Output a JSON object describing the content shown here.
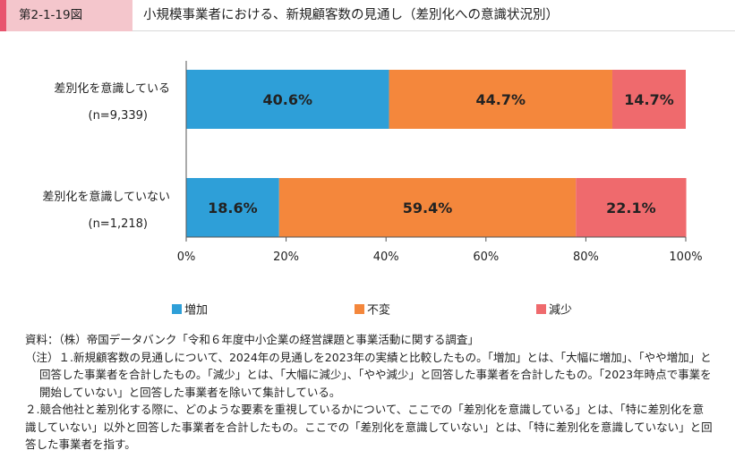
{
  "header": {
    "figure_number": "第2-1-19図",
    "title": "小規模事業者における、新規顧客数の見通し（差別化への意識状況別）"
  },
  "colors": {
    "increase": "#2e9fd8",
    "unchanged": "#f4873c",
    "decrease": "#ef6a6d"
  },
  "chart_data": {
    "type": "bar",
    "orientation": "horizontal-stacked",
    "categories": [
      {
        "name": "差別化を意識している",
        "n": "(n=9,339)"
      },
      {
        "name": "差別化を意識していない",
        "n": "(n=1,218)"
      }
    ],
    "series": [
      {
        "name": "増加",
        "values": [
          40.6,
          18.6
        ],
        "labels": [
          "40.6%",
          "18.6%"
        ]
      },
      {
        "name": "不変",
        "values": [
          44.7,
          59.4
        ],
        "labels": [
          "44.7%",
          "59.4%"
        ]
      },
      {
        "name": "減少",
        "values": [
          14.7,
          22.1
        ],
        "labels": [
          "14.7%",
          "22.1%"
        ]
      }
    ],
    "xlim": [
      0,
      100
    ],
    "ticks": [
      "0%",
      "20%",
      "40%",
      "60%",
      "80%",
      "100%"
    ],
    "tick_values": [
      0,
      20,
      40,
      60,
      80,
      100
    ],
    "legend_position": "bottom"
  },
  "notes": {
    "source": "資料：（株）帝国データバンク「令和６年度中小企業の経営課題と事業活動に関する調査」",
    "note1": "（注）１.新規顧客数の見通しについて、2024年の見通しを2023年の実績と比較したもの。「増加」とは、「大幅に増加」、「やや増加」と回答した事業者を合計したもの。「減少」とは、「大幅に減少」、「やや減少」と回答した事業者を合計したもの。「2023年時点で事業を開始していない」と回答した事業者を除いて集計している。",
    "note2": "２.競合他社と差別化する際に、どのような要素を重視しているかについて、ここでの「差別化を意識している」とは、「特に差別化を意識していない」以外と回答した事業者を合計したもの。ここでの「差別化を意識していない」とは、「特に差別化を意識していない」と回答した事業者を指す。"
  }
}
